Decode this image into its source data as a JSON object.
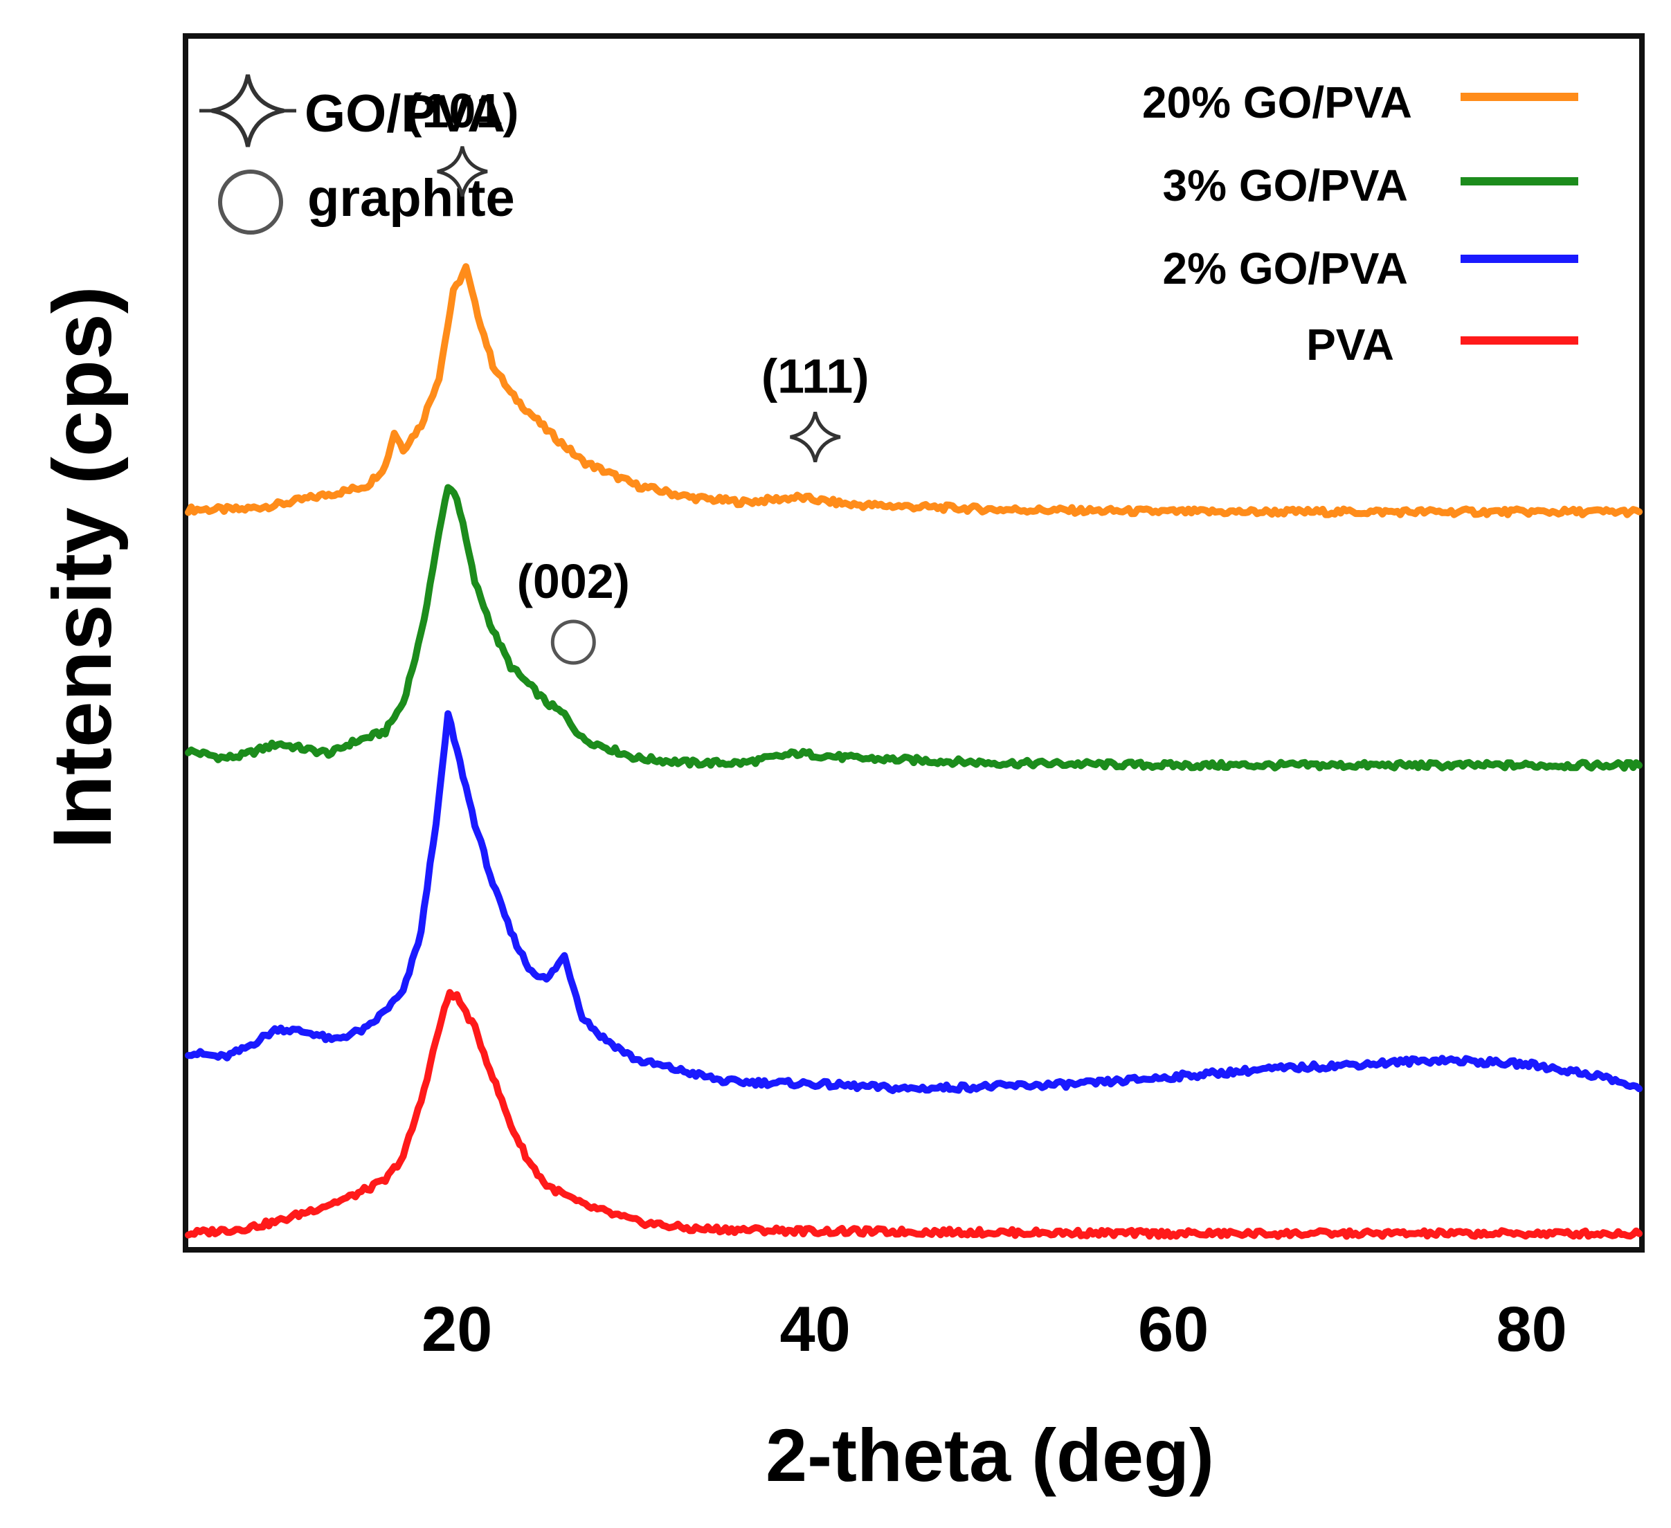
{
  "chart_data": {
    "type": "line",
    "xlabel": "2-theta (deg)",
    "ylabel": "Intensity (cps)",
    "xlim": [
      5,
      86
    ],
    "x_ticks": [
      20,
      40,
      60,
      80
    ],
    "y_ticks": [],
    "grid": false,
    "legend_position": "top-right",
    "colors": {
      "ylabel": "#000000",
      "axis": "#111111",
      "star_marker": "#333333",
      "circle_marker": "#555555"
    },
    "series": [
      {
        "name": "20% GO/PVA",
        "color": "#ff8c1a",
        "baseline": 3.0,
        "points": [
          [
            5,
            3.0
          ],
          [
            8,
            3.0
          ],
          [
            10,
            3.02
          ],
          [
            12,
            3.05
          ],
          [
            14,
            3.08
          ],
          [
            15,
            3.1
          ],
          [
            16,
            3.18
          ],
          [
            16.5,
            3.32
          ],
          [
            17,
            3.25
          ],
          [
            18,
            3.35
          ],
          [
            19,
            3.55
          ],
          [
            19.8,
            3.9
          ],
          [
            20.5,
            4.0
          ],
          [
            21,
            3.85
          ],
          [
            22,
            3.6
          ],
          [
            23,
            3.48
          ],
          [
            25,
            3.33
          ],
          [
            27,
            3.2
          ],
          [
            30,
            3.1
          ],
          [
            33,
            3.05
          ],
          [
            36,
            3.03
          ],
          [
            39,
            3.05
          ],
          [
            42,
            3.02
          ],
          [
            50,
            3.0
          ],
          [
            60,
            2.99
          ],
          [
            70,
            2.99
          ],
          [
            80,
            2.99
          ],
          [
            86,
            2.99
          ]
        ]
      },
      {
        "name": "3% GO/PVA",
        "color": "#1c8c1c",
        "baseline": 2.0,
        "points": [
          [
            5,
            2.0
          ],
          [
            7,
            1.97
          ],
          [
            8,
            1.98
          ],
          [
            10,
            2.03
          ],
          [
            12,
            2.0
          ],
          [
            13,
            1.99
          ],
          [
            14,
            2.03
          ],
          [
            16,
            2.08
          ],
          [
            17,
            2.2
          ],
          [
            18,
            2.48
          ],
          [
            19,
            2.9
          ],
          [
            19.5,
            3.1
          ],
          [
            20,
            3.05
          ],
          [
            21,
            2.7
          ],
          [
            22,
            2.5
          ],
          [
            23,
            2.35
          ],
          [
            25,
            2.2
          ],
          [
            26,
            2.15
          ],
          [
            27,
            2.05
          ],
          [
            30,
            1.97
          ],
          [
            33,
            1.95
          ],
          [
            36,
            1.95
          ],
          [
            39,
            1.99
          ],
          [
            42,
            1.97
          ],
          [
            50,
            1.95
          ],
          [
            60,
            1.94
          ],
          [
            70,
            1.94
          ],
          [
            80,
            1.94
          ],
          [
            86,
            1.94
          ]
        ]
      },
      {
        "name": "2% GO/PVA",
        "color": "#1a1aff",
        "baseline": 0.75,
        "points": [
          [
            5,
            0.75
          ],
          [
            7,
            0.73
          ],
          [
            8,
            0.76
          ],
          [
            10,
            0.85
          ],
          [
            12,
            0.83
          ],
          [
            13,
            0.8
          ],
          [
            15,
            0.85
          ],
          [
            17,
            1.0
          ],
          [
            18,
            1.25
          ],
          [
            19,
            1.8
          ],
          [
            19.5,
            2.15
          ],
          [
            20,
            2.0
          ],
          [
            21,
            1.7
          ],
          [
            22,
            1.45
          ],
          [
            23,
            1.25
          ],
          [
            24,
            1.1
          ],
          [
            25,
            1.05
          ],
          [
            26,
            1.15
          ],
          [
            27,
            0.9
          ],
          [
            28,
            0.82
          ],
          [
            30,
            0.72
          ],
          [
            35,
            0.63
          ],
          [
            40,
            0.62
          ],
          [
            45,
            0.6
          ],
          [
            50,
            0.61
          ],
          [
            55,
            0.62
          ],
          [
            60,
            0.65
          ],
          [
            65,
            0.68
          ],
          [
            70,
            0.7
          ],
          [
            75,
            0.72
          ],
          [
            80,
            0.7
          ],
          [
            84,
            0.65
          ],
          [
            86,
            0.6
          ]
        ]
      },
      {
        "name": "PVA",
        "color": "#ff1a1a",
        "baseline": 0.0,
        "points": [
          [
            5,
            0.0
          ],
          [
            8,
            0.02
          ],
          [
            10,
            0.05
          ],
          [
            12,
            0.1
          ],
          [
            14,
            0.15
          ],
          [
            16,
            0.22
          ],
          [
            17,
            0.32
          ],
          [
            18,
            0.55
          ],
          [
            19,
            0.85
          ],
          [
            19.6,
            1.0
          ],
          [
            20,
            0.98
          ],
          [
            21,
            0.85
          ],
          [
            22,
            0.65
          ],
          [
            23,
            0.45
          ],
          [
            24,
            0.3
          ],
          [
            25,
            0.2
          ],
          [
            27,
            0.12
          ],
          [
            30,
            0.05
          ],
          [
            33,
            0.02
          ],
          [
            40,
            0.01
          ],
          [
            60,
            0.0
          ],
          [
            80,
            0.0
          ],
          [
            86,
            0.0
          ]
        ]
      }
    ],
    "annotations": {
      "marker_legend": [
        {
          "symbol": "star",
          "label": "GO/PVA"
        },
        {
          "symbol": "circle",
          "label": "graphite"
        }
      ],
      "peaks": [
        {
          "label": "(101)",
          "symbol": "star",
          "x": 20.3,
          "y": 4.4
        },
        {
          "label": "(111)",
          "symbol": "star",
          "x": 40,
          "y": 3.3
        },
        {
          "label": "(002)",
          "symbol": "circle",
          "x": 26.5,
          "y": 2.45
        }
      ]
    }
  }
}
